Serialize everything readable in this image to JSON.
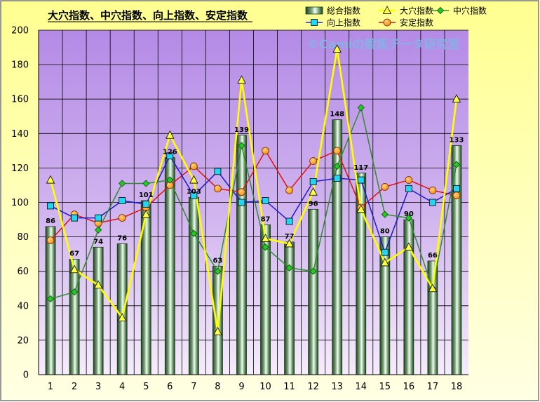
{
  "chart_data": {
    "type": "bar",
    "title": "大穴指数、中穴指数、向上指数、安定指数",
    "watermark": "©Camiの競馬データ研究室",
    "categories": [
      "1",
      "2",
      "3",
      "4",
      "5",
      "6",
      "7",
      "8",
      "9",
      "10",
      "11",
      "12",
      "13",
      "14",
      "15",
      "16",
      "17",
      "18"
    ],
    "ylim": [
      0,
      200
    ],
    "yticks": [
      "0",
      "20",
      "40",
      "60",
      "80",
      "100",
      "120",
      "140",
      "160",
      "180",
      "200"
    ],
    "grid": true,
    "legend_position": "top-right",
    "series": [
      {
        "name": "総合指数",
        "kind": "bar",
        "color": "#3c6e3c",
        "values": [
          86,
          67,
          74,
          76,
          101,
          126,
          103,
          63,
          139,
          87,
          77,
          96,
          148,
          117,
          80,
          90,
          66,
          133
        ],
        "labels": [
          "86",
          "67",
          "74",
          "76",
          "101",
          "126",
          "103",
          "63",
          "139",
          "87",
          "77",
          "96",
          "148",
          "117",
          "80",
          "90",
          "66",
          "133"
        ]
      },
      {
        "name": "大穴指数",
        "kind": "line",
        "marker": "triangle",
        "color": "#ffff00",
        "values": [
          113,
          61,
          52,
          33,
          93,
          139,
          113,
          25,
          171,
          79,
          76,
          106,
          189,
          96,
          65,
          74,
          50,
          160
        ]
      },
      {
        "name": "中穴指数",
        "kind": "line",
        "marker": "diamond",
        "color": "#2e8b2e",
        "values": [
          44,
          48,
          84,
          111,
          111,
          113,
          82,
          60,
          133,
          74,
          62,
          60,
          121,
          155,
          93,
          91,
          50,
          122
        ]
      },
      {
        "name": "向上指数",
        "kind": "line",
        "marker": "square",
        "color": "#1a1ad0",
        "values": [
          98,
          91,
          91,
          101,
          99,
          127,
          104,
          118,
          100,
          101,
          89,
          112,
          114,
          113,
          71,
          108,
          100,
          108
        ]
      },
      {
        "name": "安定指数",
        "kind": "line",
        "marker": "circle",
        "color": "#e01010",
        "values": [
          78,
          93,
          88,
          91,
          97,
          110,
          121,
          108,
          106,
          130,
          107,
          124,
          130,
          97,
          109,
          113,
          107,
          104
        ]
      }
    ]
  }
}
